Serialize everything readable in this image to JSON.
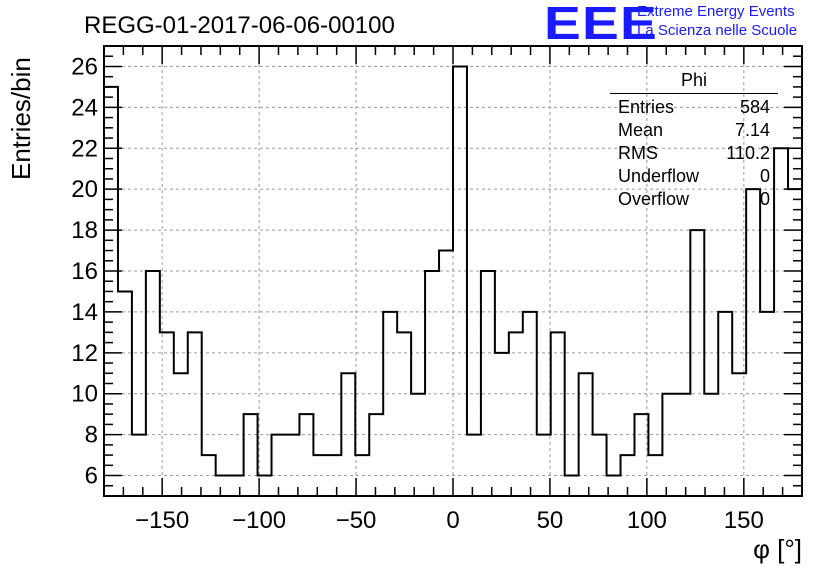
{
  "header": {
    "title": "REGG-01-2017-06-06-00100",
    "logo_text": "EEE",
    "logo_line1": "Extreme Energy Events",
    "logo_line2": "La Scienza nelle Scuole"
  },
  "stats_box": {
    "title": "Phi",
    "rows": [
      {
        "label": "Entries",
        "value": "584"
      },
      {
        "label": "Mean",
        "value": "7.14"
      },
      {
        "label": "RMS",
        "value": "110.2"
      },
      {
        "label": "Underflow",
        "value": "0"
      },
      {
        "label": "Overflow",
        "value": "0"
      }
    ]
  },
  "colors": {
    "logo": "#1a1aff",
    "line": "#000000",
    "grid": "#9a9a9a"
  },
  "chart_data": {
    "type": "histogram",
    "title": "REGG-01-2017-06-06-00100",
    "xlabel": "φ [°]",
    "ylabel": "Entries/bin",
    "xlim": [
      -180,
      180
    ],
    "ylim": [
      5,
      27
    ],
    "bin_width": 7.2,
    "values": [
      25,
      15,
      8,
      16,
      13,
      11,
      13,
      7,
      6,
      6,
      9,
      6,
      8,
      8,
      9,
      7,
      7,
      11,
      7,
      9,
      14,
      13,
      10,
      16,
      17,
      26,
      8,
      16,
      12,
      13,
      14,
      8,
      13,
      6,
      11,
      8,
      6,
      7,
      9,
      7,
      10,
      10,
      18,
      10,
      14,
      11,
      20,
      14,
      22,
      20
    ],
    "xticks": [
      -150,
      -100,
      -50,
      0,
      50,
      100,
      150
    ],
    "xtick_labels": [
      "−150",
      "−100",
      "−50",
      "0",
      "50",
      "100",
      "150"
    ],
    "yticks": [
      6,
      8,
      10,
      12,
      14,
      16,
      18,
      20,
      22,
      24,
      26
    ],
    "grid": true,
    "legend": "top-right"
  }
}
